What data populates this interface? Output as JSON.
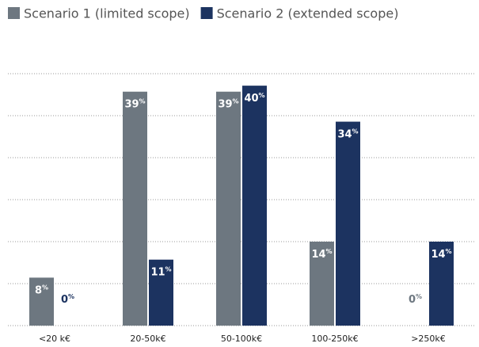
{
  "chart_data": {
    "type": "bar",
    "categories": [
      "<20 k€",
      "20-50k€",
      "50-100k€",
      "100-250k€",
      ">250k€"
    ],
    "series": [
      {
        "name": "Scenario 1 (limited scope)",
        "color": "#6d7780",
        "values": [
          8,
          39,
          39,
          14,
          0
        ],
        "value_labels": [
          "8%",
          "39%",
          "39%",
          "14%",
          "0%"
        ]
      },
      {
        "name": "Scenario 2 (extended scope)",
        "color": "#1c3360",
        "values": [
          0,
          11,
          40,
          34,
          14
        ],
        "value_labels": [
          "0%",
          "11%",
          "40%",
          "34%",
          "14%"
        ]
      }
    ],
    "ylim": [
      0,
      42
    ],
    "yticks": [
      0,
      7,
      14,
      21,
      28,
      35,
      42
    ],
    "grid": true,
    "legend": "top-left"
  }
}
